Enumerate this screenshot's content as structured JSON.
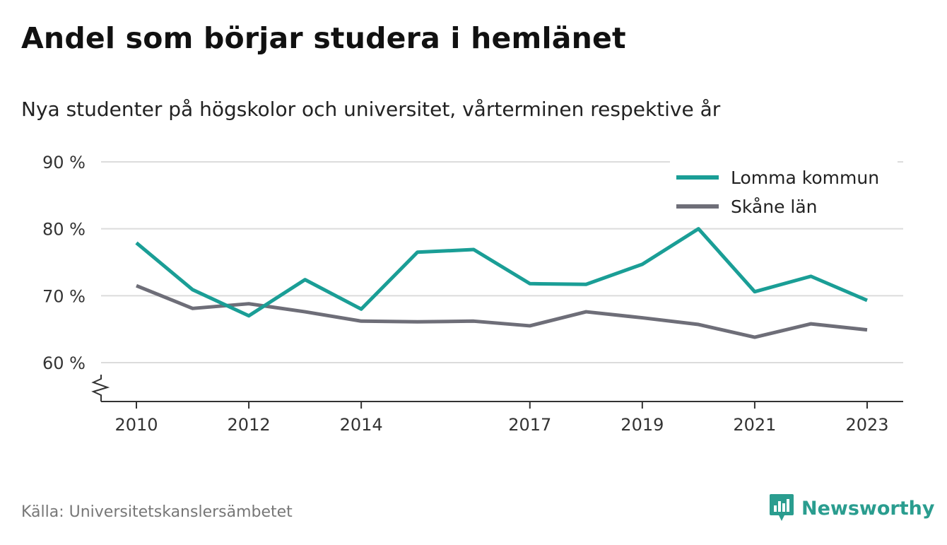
{
  "title": "Andel som börjar studera i hemlänet",
  "subtitle": "Nya studenter på högskolor och universitet, vårterminen respektive år",
  "source": "Källa: Universitetskanslersämbetet",
  "brand": {
    "name": "Newsworthy",
    "icon": "bar-chart-speech-bubble-icon",
    "color": "#2a9d8f"
  },
  "chart_data": {
    "type": "line",
    "title": "Andel som börjar studera i hemlänet",
    "subtitle": "Nya studenter på högskolor och universitet, vårterminen respektive år",
    "x": [
      2010,
      2011,
      2012,
      2013,
      2014,
      2015,
      2016,
      2017,
      2018,
      2019,
      2020,
      2021,
      2022,
      2023
    ],
    "x_ticks": [
      "2010",
      "2012",
      "2014",
      "2017",
      "2019",
      "2021",
      "2023"
    ],
    "y_ticks": [
      "90 %",
      "80 %",
      "70 %",
      "60 %"
    ],
    "y_tick_values": [
      90,
      80,
      70,
      60
    ],
    "ylim": [
      54,
      90
    ],
    "y_axis_break": true,
    "grid": true,
    "legend_position": "top-right",
    "series": [
      {
        "name": "Lomma kommun",
        "color": "#1a9e96",
        "values": [
          77.9,
          70.9,
          67.0,
          72.4,
          68.0,
          76.5,
          76.9,
          71.8,
          71.7,
          74.7,
          80.0,
          70.6,
          72.9,
          69.3
        ]
      },
      {
        "name": "Skåne län",
        "color": "#6e6e78",
        "values": [
          71.5,
          68.1,
          68.8,
          67.6,
          66.2,
          66.1,
          66.2,
          65.5,
          67.6,
          66.7,
          65.7,
          63.8,
          65.8,
          64.9
        ]
      }
    ]
  }
}
